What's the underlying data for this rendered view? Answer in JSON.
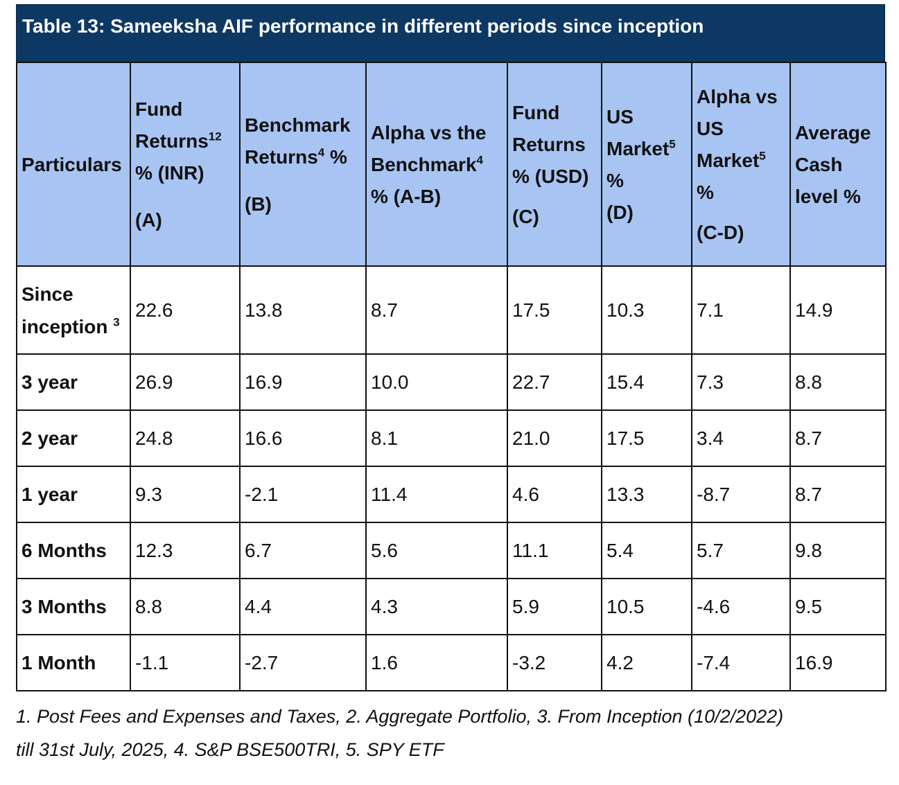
{
  "title": "Table 13: Sameeksha AIF performance in different periods since inception",
  "headers": [
    {
      "l1": "Particulars"
    },
    {
      "l1": "Fund",
      "l2": "Returns",
      "sup": "12",
      "l3": "% (INR)",
      "l4": "(A)"
    },
    {
      "l1": "Benchmark",
      "l2": "Returns",
      "sup": "4",
      "l2b": " %",
      "l3": "(B)"
    },
    {
      "l1": "Alpha vs the",
      "l2": "Benchmark",
      "sup": "4",
      "l3": "% (A-B)"
    },
    {
      "l1": "Fund",
      "l2": "Returns",
      "l3": "% (USD)",
      "l4": "(C)"
    },
    {
      "l1": "US",
      "l2": "Market",
      "sup": "5",
      "l3": "%",
      "l4": "(D)"
    },
    {
      "l1": "Alpha vs",
      "l2": "US",
      "l3": "Market",
      "sup": "5",
      "l4": "%",
      "l5": "(C-D)"
    },
    {
      "l1": "Average",
      "l2": "Cash",
      "l3": "level %"
    }
  ],
  "rows": [
    {
      "label1": "Since",
      "label2": "inception",
      "sup": "3",
      "values": [
        "22.6",
        "13.8",
        "8.7",
        "17.5",
        "10.3",
        "7.1",
        "14.9"
      ]
    },
    {
      "label1": "3 year",
      "values": [
        "26.9",
        "16.9",
        "10.0",
        "22.7",
        "15.4",
        "7.3",
        "8.8"
      ]
    },
    {
      "label1": "2 year",
      "values": [
        "24.8",
        "16.6",
        "8.1",
        "21.0",
        "17.5",
        "3.4",
        "8.7"
      ]
    },
    {
      "label1": "1 year",
      "values": [
        "9.3",
        "-2.1",
        "11.4",
        "4.6",
        "13.3",
        "-8.7",
        "8.7"
      ]
    },
    {
      "label1": "6 Months",
      "values": [
        "12.3",
        "6.7",
        "5.6",
        "11.1",
        "5.4",
        "5.7",
        "9.8"
      ]
    },
    {
      "label1": "3 Months",
      "values": [
        "8.8",
        "4.4",
        "4.3",
        "5.9",
        "10.5",
        "-4.6",
        "9.5"
      ]
    },
    {
      "label1": "1 Month",
      "values": [
        "-1.1",
        "-2.7",
        "1.6",
        "-3.2",
        "4.2",
        "-7.4",
        "16.9"
      ]
    }
  ],
  "footnote": {
    "line1": "1. Post Fees and Expenses and Taxes, 2. Aggregate Portfolio, 3. From Inception (10/2/2022)",
    "line2": "till 31st July, 2025,  4. S&P BSE500TRI,  5. SPY ETF"
  }
}
